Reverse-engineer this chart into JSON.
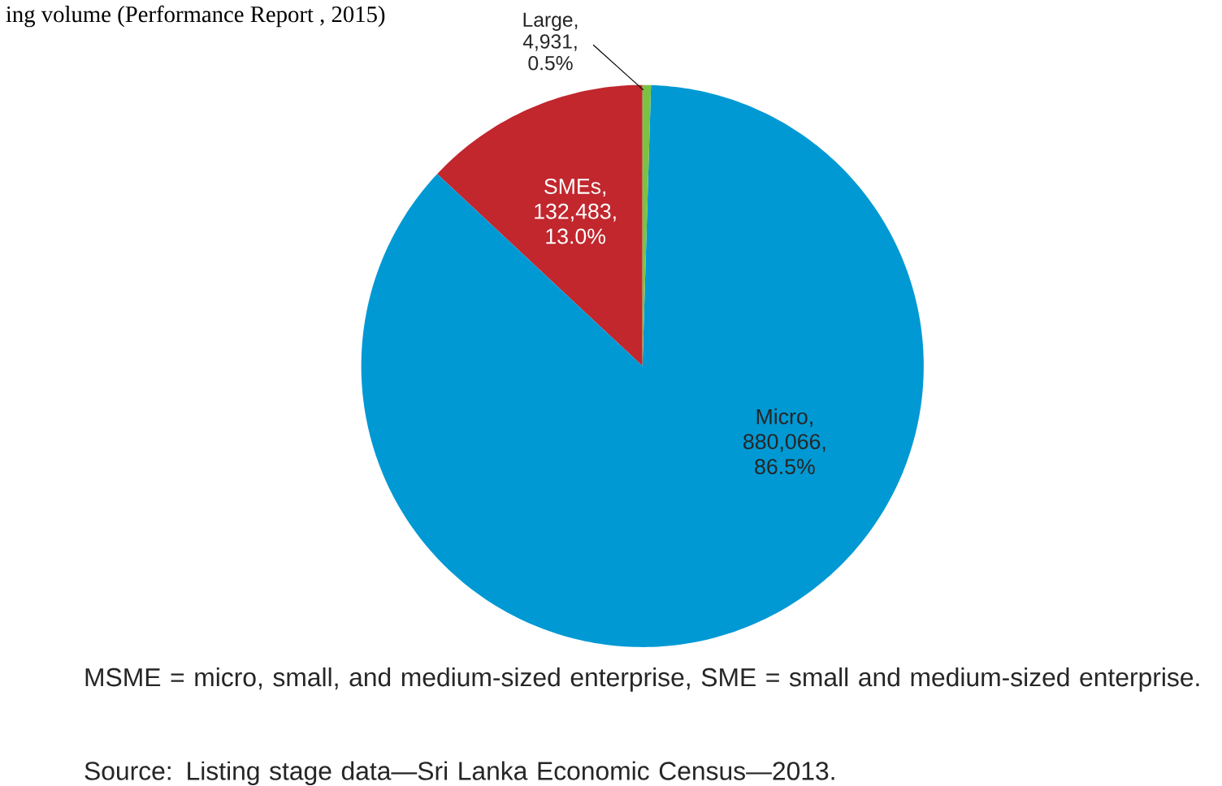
{
  "chart_data": {
    "type": "pie",
    "title": "ing volume (Performance Report , 2015)",
    "categories": [
      "SMEs",
      "Micro",
      "Large"
    ],
    "values": [
      132483,
      880066,
      4931
    ],
    "value_labels": [
      ", 132,483, 13.0%",
      ", 880,066, 86.5%",
      ", 4,931, 0.5%"
    ],
    "colors": [
      "#c1272d",
      "#0099d4",
      "#7cc242"
    ],
    "annotations": [
      "MSME = micro, small, and medium-sized enterprise, SME = small and medium-sized enterprise.",
      "Source: Listing stage data—Sri Lanka Economic Census—2013."
    ]
  }
}
